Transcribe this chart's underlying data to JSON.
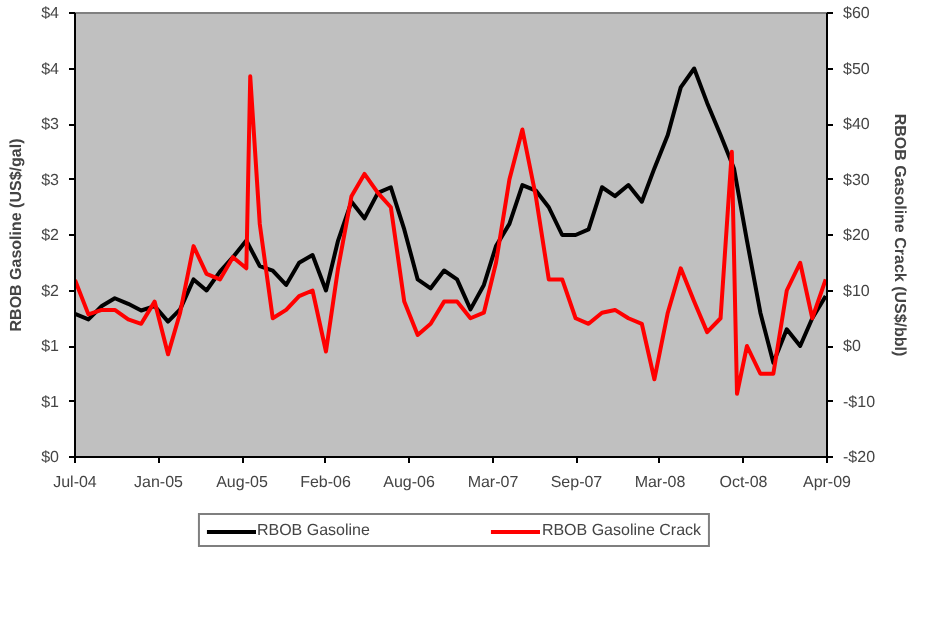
{
  "chart_data": {
    "type": "line",
    "ylabel": "RBOB Gasoline (US$/gal)",
    "y2label": "RBOB Gasoline Crack (US$/bbl)",
    "xlim": [
      "2004-07-15",
      "2009-04-18"
    ],
    "xticks": [
      {
        "value": "2004-07-15",
        "label": "Jul-04"
      },
      {
        "value": "2005-01-24",
        "label": "Jan-05"
      },
      {
        "value": "2005-08-05",
        "label": "Aug-05"
      },
      {
        "value": "2006-02-14",
        "label": "Feb-06"
      },
      {
        "value": "2006-08-26",
        "label": "Aug-06"
      },
      {
        "value": "2007-03-08",
        "label": "Mar-07"
      },
      {
        "value": "2007-09-17",
        "label": "Sep-07"
      },
      {
        "value": "2008-03-28",
        "label": "Mar-08"
      },
      {
        "value": "2008-10-07",
        "label": "Oct-08"
      },
      {
        "value": "2009-04-18",
        "label": "Apr-09"
      }
    ],
    "ylim": [
      0,
      4
    ],
    "yticks": [
      {
        "value": 0,
        "label": "$0"
      },
      {
        "value": 0.5,
        "label": "$1"
      },
      {
        "value": 1,
        "label": "$1"
      },
      {
        "value": 1.5,
        "label": "$2"
      },
      {
        "value": 2,
        "label": "$2"
      },
      {
        "value": 2.5,
        "label": "$3"
      },
      {
        "value": 3,
        "label": "$3"
      },
      {
        "value": 3.5,
        "label": "$4"
      },
      {
        "value": 4,
        "label": "$4"
      }
    ],
    "y2lim": [
      -20,
      60
    ],
    "y2ticks": [
      {
        "value": -20,
        "label": "-$20"
      },
      {
        "value": -10,
        "label": "-$10"
      },
      {
        "value": 0,
        "label": "$0"
      },
      {
        "value": 10,
        "label": "$10"
      },
      {
        "value": 20,
        "label": "$20"
      },
      {
        "value": 30,
        "label": "$30"
      },
      {
        "value": 40,
        "label": "$40"
      },
      {
        "value": 50,
        "label": "$50"
      },
      {
        "value": 60,
        "label": "$60"
      }
    ],
    "grid": false,
    "legend": "bottom",
    "line_style": "solid",
    "series": [
      {
        "name": "RBOB Gasoline",
        "color": "#000000",
        "x": [
          "2004-07-15",
          "2004-08-15",
          "2004-09-15",
          "2004-10-15",
          "2004-11-15",
          "2004-12-15",
          "2005-01-15",
          "2005-02-15",
          "2005-03-15",
          "2005-04-15",
          "2005-05-15",
          "2005-06-15",
          "2005-07-15",
          "2005-08-15",
          "2005-09-15",
          "2005-10-15",
          "2005-11-15",
          "2005-12-15",
          "2006-01-15",
          "2006-02-15",
          "2006-03-15",
          "2006-04-15",
          "2006-05-15",
          "2006-06-15",
          "2006-07-15",
          "2006-08-15",
          "2006-09-15",
          "2006-10-15",
          "2006-11-15",
          "2006-12-15",
          "2007-01-15",
          "2007-02-15",
          "2007-03-15",
          "2007-04-15",
          "2007-05-15",
          "2007-06-15",
          "2007-07-15",
          "2007-08-15",
          "2007-09-15",
          "2007-10-15",
          "2007-11-15",
          "2007-12-15",
          "2008-01-15",
          "2008-02-15",
          "2008-03-15",
          "2008-04-15",
          "2008-05-15",
          "2008-06-15",
          "2008-07-15",
          "2008-08-15",
          "2008-09-15",
          "2008-10-15",
          "2008-11-15",
          "2008-12-15",
          "2009-01-15",
          "2009-02-15",
          "2009-03-15",
          "2009-04-15"
        ],
        "values": [
          1.29,
          1.24,
          1.36,
          1.43,
          1.38,
          1.32,
          1.36,
          1.22,
          1.33,
          1.6,
          1.5,
          1.67,
          1.8,
          1.95,
          1.72,
          1.68,
          1.55,
          1.75,
          1.82,
          1.5,
          1.95,
          2.3,
          2.15,
          2.38,
          2.43,
          2.05,
          1.6,
          1.52,
          1.68,
          1.6,
          1.33,
          1.55,
          1.9,
          2.1,
          2.45,
          2.4,
          2.25,
          2.0,
          2.0,
          2.05,
          2.43,
          2.35,
          2.45,
          2.3,
          2.6,
          2.9,
          3.33,
          3.5,
          3.19,
          2.9,
          2.6,
          1.95,
          1.3,
          0.85,
          1.15,
          1.0,
          1.25,
          1.45
        ]
      },
      {
        "name": "RBOB Gasoline Crack",
        "color": "#ff0000",
        "axis": "y2",
        "x": [
          "2004-07-15",
          "2004-08-15",
          "2004-09-15",
          "2004-10-15",
          "2004-11-15",
          "2004-12-15",
          "2005-01-15",
          "2005-02-15",
          "2005-03-15",
          "2005-04-15",
          "2005-05-15",
          "2005-06-15",
          "2005-07-15",
          "2005-08-15",
          "2005-08-24",
          "2005-09-15",
          "2005-10-15",
          "2005-11-15",
          "2005-12-15",
          "2006-01-15",
          "2006-02-15",
          "2006-03-15",
          "2006-04-15",
          "2006-05-15",
          "2006-06-15",
          "2006-07-15",
          "2006-08-15",
          "2006-09-15",
          "2006-10-15",
          "2006-11-15",
          "2006-12-15",
          "2007-01-15",
          "2007-02-15",
          "2007-03-15",
          "2007-04-15",
          "2007-05-15",
          "2007-06-15",
          "2007-07-15",
          "2007-08-15",
          "2007-09-15",
          "2007-10-15",
          "2007-11-15",
          "2007-12-15",
          "2008-01-15",
          "2008-02-15",
          "2008-03-15",
          "2008-04-15",
          "2008-05-15",
          "2008-06-15",
          "2008-07-15",
          "2008-08-15",
          "2008-09-10",
          "2008-09-22",
          "2008-10-15",
          "2008-11-15",
          "2008-12-15",
          "2009-01-15",
          "2009-02-15",
          "2009-03-15",
          "2009-04-15"
        ],
        "values": [
          11.9,
          5.7,
          6.5,
          6.5,
          4.8,
          4,
          8,
          -1.5,
          6,
          18,
          13,
          12,
          16,
          14,
          48.6,
          22,
          5,
          6.5,
          9,
          10,
          -1,
          14,
          27,
          31,
          27.6,
          25,
          8,
          2,
          4,
          8,
          8,
          5,
          6,
          15,
          30,
          39,
          27,
          12,
          12,
          5,
          4,
          6,
          6.5,
          5,
          4,
          -6,
          6,
          14,
          8,
          2.5,
          5,
          35,
          -8.6,
          0,
          -5,
          -5,
          10,
          15,
          5,
          12
        ]
      }
    ]
  }
}
